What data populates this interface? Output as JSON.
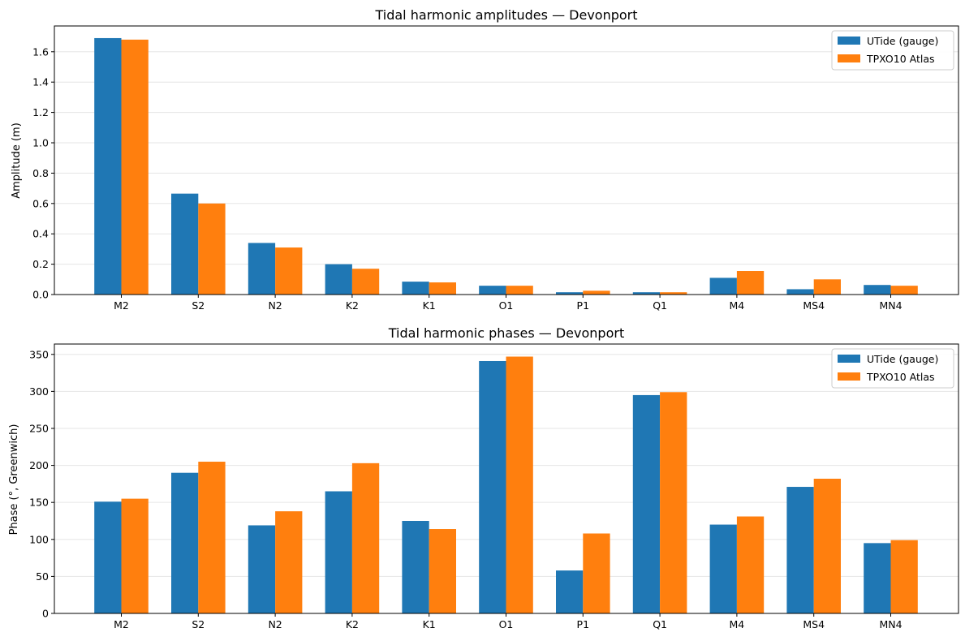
{
  "chart_data": [
    {
      "type": "bar",
      "title": "Tidal harmonic amplitudes — Devonport",
      "xlabel": "",
      "ylabel": "Amplitude (m)",
      "categories": [
        "M2",
        "S2",
        "N2",
        "K2",
        "K1",
        "O1",
        "P1",
        "Q1",
        "M4",
        "MS4",
        "MN4"
      ],
      "series": [
        {
          "name": "UTide (gauge)",
          "color": "#1f77b4",
          "values": [
            1.69,
            0.665,
            0.34,
            0.2,
            0.085,
            0.058,
            0.015,
            0.015,
            0.11,
            0.035,
            0.063
          ]
        },
        {
          "name": "TPXO10 Atlas",
          "color": "#ff7f0e",
          "values": [
            1.68,
            0.6,
            0.31,
            0.17,
            0.08,
            0.058,
            0.025,
            0.015,
            0.155,
            0.1,
            0.058
          ]
        }
      ],
      "ylim": [
        0,
        1.77
      ],
      "yticks": [
        "0.0",
        "0.2",
        "0.4",
        "0.6",
        "0.8",
        "1.0",
        "1.2",
        "1.4",
        "1.6"
      ],
      "grid": "y",
      "legend": "top-right"
    },
    {
      "type": "bar",
      "title": "Tidal harmonic phases — Devonport",
      "xlabel": "",
      "ylabel": "Phase (°, Greenwich)",
      "categories": [
        "M2",
        "S2",
        "N2",
        "K2",
        "K1",
        "O1",
        "P1",
        "Q1",
        "M4",
        "MS4",
        "MN4"
      ],
      "series": [
        {
          "name": "UTide (gauge)",
          "color": "#1f77b4",
          "values": [
            151,
            190,
            119,
            165,
            125,
            341,
            58,
            295,
            120,
            171,
            95
          ]
        },
        {
          "name": "TPXO10 Atlas",
          "color": "#ff7f0e",
          "values": [
            155,
            205,
            138,
            203,
            114,
            347,
            108,
            299,
            131,
            182,
            99
          ]
        }
      ],
      "ylim": [
        0,
        364
      ],
      "yticks": [
        "0",
        "50",
        "100",
        "150",
        "200",
        "250",
        "300",
        "350"
      ],
      "grid": "y",
      "legend": "top-right"
    }
  ]
}
